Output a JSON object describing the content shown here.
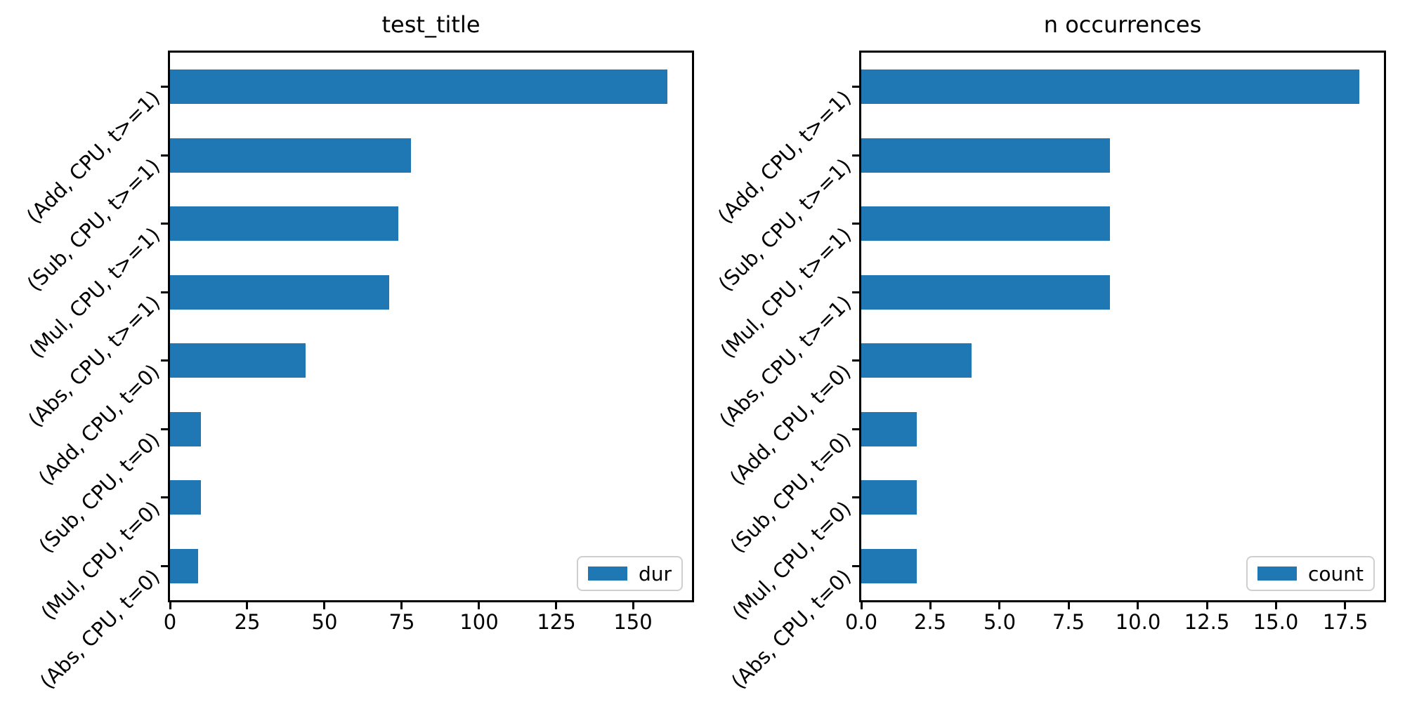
{
  "figure": {
    "background": "#ffffff"
  },
  "colors": {
    "bar": "#1f77b4",
    "spine": "#000000",
    "text": "#000000",
    "legend_border": "#cfcfcf"
  },
  "chart_data": [
    {
      "type": "bar",
      "orientation": "horizontal",
      "title": "test_title",
      "categories": [
        "(Add, CPU, t>=1)",
        "(Sub, CPU, t>=1)",
        "(Mul, CPU, t>=1)",
        "(Abs, CPU, t>=1)",
        "(Add, CPU, t=0)",
        "(Sub, CPU, t=0)",
        "(Mul, CPU, t=0)",
        "(Abs, CPU, t=0)"
      ],
      "series": [
        {
          "name": "dur",
          "values": [
            161,
            78,
            74,
            71,
            44,
            10,
            10,
            9
          ]
        }
      ],
      "xlabel": "",
      "ylabel": "",
      "xlim": [
        0,
        169
      ],
      "x_ticks": [
        0,
        25,
        50,
        75,
        100,
        125,
        150
      ],
      "x_tick_labels": [
        "0",
        "25",
        "50",
        "75",
        "100",
        "125",
        "150"
      ],
      "y_tick_rotation_deg": 45,
      "grid": false,
      "legend": {
        "position": "lower right",
        "entries": [
          "dur"
        ]
      }
    },
    {
      "type": "bar",
      "orientation": "horizontal",
      "title": "n occurrences",
      "categories": [
        "(Add, CPU, t>=1)",
        "(Sub, CPU, t>=1)",
        "(Mul, CPU, t>=1)",
        "(Abs, CPU, t>=1)",
        "(Add, CPU, t=0)",
        "(Sub, CPU, t=0)",
        "(Mul, CPU, t=0)",
        "(Abs, CPU, t=0)"
      ],
      "series": [
        {
          "name": "count",
          "values": [
            18,
            9,
            9,
            9,
            4,
            2,
            2,
            2
          ]
        }
      ],
      "xlabel": "",
      "ylabel": "",
      "xlim": [
        0,
        18.9
      ],
      "x_ticks": [
        0,
        2.5,
        5,
        7.5,
        10,
        12.5,
        15,
        17.5
      ],
      "x_tick_labels": [
        "0.0",
        "2.5",
        "5.0",
        "7.5",
        "10.0",
        "12.5",
        "15.0",
        "17.5"
      ],
      "y_tick_rotation_deg": 45,
      "grid": false,
      "legend": {
        "position": "lower right",
        "entries": [
          "count"
        ]
      }
    }
  ]
}
